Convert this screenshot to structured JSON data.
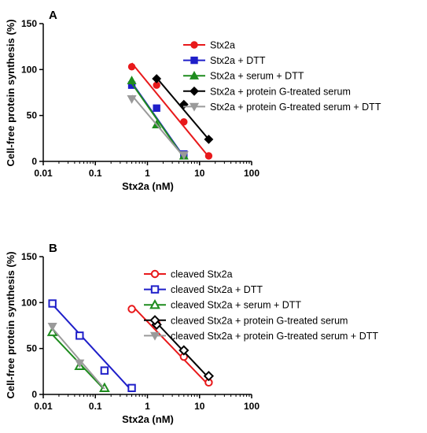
{
  "colors": {
    "red": "#e8191b",
    "blue": "#1f1fc9",
    "green": "#1e8c1e",
    "black": "#000000",
    "grey": "#9a9a9a"
  },
  "chart_data": [
    {
      "panel": "A",
      "type": "scatter",
      "xlabel": "Stx2a (nM)",
      "ylabel": "Cell-free protein synthesis (%)",
      "xscale": "log",
      "xlim": [
        0.01,
        100
      ],
      "ylim": [
        0,
        150
      ],
      "xticks": [
        "0.01",
        "0.1",
        "1",
        "10",
        "100"
      ],
      "yticks": [
        "0",
        "50",
        "100",
        "150"
      ],
      "legend_position": "right",
      "series": [
        {
          "name": "Stx2a",
          "color": "red",
          "marker": "circle",
          "filled": true,
          "x": [
            0.5,
            1.5,
            5,
            15
          ],
          "y": [
            103,
            83,
            43,
            6
          ],
          "fit": [
            [
              0.5,
              107
            ],
            [
              15,
              5
            ]
          ]
        },
        {
          "name": "Stx2a + DTT",
          "color": "blue",
          "marker": "square",
          "filled": true,
          "x": [
            0.5,
            1.5,
            5
          ],
          "y": [
            83,
            58,
            8
          ],
          "fit": [
            [
              0.5,
              86
            ],
            [
              5,
              5
            ]
          ]
        },
        {
          "name": "Stx2a + serum + DTT",
          "color": "green",
          "marker": "triangle-up",
          "filled": true,
          "x": [
            0.5,
            1.5,
            5
          ],
          "y": [
            88,
            40,
            6
          ],
          "fit": [
            [
              0.5,
              85
            ],
            [
              5,
              4
            ]
          ]
        },
        {
          "name": "Stx2a + protein G-treated serum",
          "color": "black",
          "marker": "diamond",
          "filled": true,
          "x": [
            1.5,
            5,
            15
          ],
          "y": [
            90,
            62,
            24
          ],
          "fit": [
            [
              1.5,
              91
            ],
            [
              15,
              24
            ]
          ]
        },
        {
          "name": "Stx2a + protein G-treated serum + DTT",
          "color": "grey",
          "marker": "triangle-down",
          "filled": true,
          "x": [
            0.5,
            5
          ],
          "y": [
            68,
            7
          ],
          "fit": [
            [
              0.5,
              72
            ],
            [
              5,
              5
            ]
          ]
        }
      ]
    },
    {
      "panel": "B",
      "type": "scatter",
      "xlabel": "Stx2a (nM)",
      "ylabel": "Cell-free protein synthesis (%)",
      "xscale": "log",
      "xlim": [
        0.01,
        100
      ],
      "ylim": [
        0,
        150
      ],
      "xticks": [
        "0.01",
        "0.1",
        "1",
        "10",
        "100"
      ],
      "yticks": [
        "0",
        "50",
        "100",
        "150"
      ],
      "legend_position": "right",
      "series": [
        {
          "name": "cleaved Stx2a",
          "color": "red",
          "marker": "circle",
          "filled": false,
          "x": [
            0.5,
            1.5,
            5,
            15
          ],
          "y": [
            93,
            77,
            41,
            13
          ],
          "fit": [
            [
              0.5,
              97
            ],
            [
              15,
              10
            ]
          ]
        },
        {
          "name": "cleaved Stx2a + DTT",
          "color": "blue",
          "marker": "square",
          "filled": false,
          "x": [
            0.015,
            0.05,
            0.15,
            0.5
          ],
          "y": [
            99,
            64,
            26,
            7
          ],
          "fit": [
            [
              0.015,
              98
            ],
            [
              0.5,
              4
            ]
          ]
        },
        {
          "name": "cleaved Stx2a + serum + DTT",
          "color": "green",
          "marker": "triangle-up",
          "filled": false,
          "x": [
            0.015,
            0.05,
            0.15
          ],
          "y": [
            68,
            31,
            7
          ],
          "fit": [
            [
              0.015,
              65
            ],
            [
              0.15,
              5
            ]
          ]
        },
        {
          "name": "cleaved Stx2a + protein G-treated serum",
          "color": "black",
          "marker": "diamond",
          "filled": false,
          "x": [
            1.5,
            5,
            15
          ],
          "y": [
            76,
            48,
            20
          ],
          "fit": [
            [
              1.5,
              78
            ],
            [
              15,
              18
            ]
          ]
        },
        {
          "name": "cleaved Stx2a + protein G-treated serum + DTT",
          "color": "grey",
          "marker": "triangle-down",
          "filled": true,
          "x": [
            0.015,
            0.05
          ],
          "y": [
            74,
            34
          ],
          "fit": [
            [
              0.015,
              72
            ],
            [
              0.15,
              6
            ]
          ]
        }
      ]
    }
  ]
}
